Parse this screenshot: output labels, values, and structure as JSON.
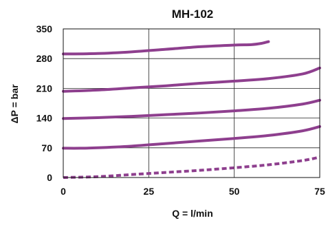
{
  "chart_data": {
    "type": "line",
    "title": "MH-102",
    "xlabel": "Q = l/min",
    "ylabel": "ΔP = bar",
    "xlim": [
      0,
      75
    ],
    "ylim": [
      0,
      350
    ],
    "x_ticks": [
      0,
      25,
      50,
      75
    ],
    "x_tick_labels": [
      "0",
      "25",
      "50",
      "75"
    ],
    "y_ticks": [
      0,
      70,
      140,
      210,
      280,
      350
    ],
    "y_tick_labels": [
      "0",
      "70",
      "140",
      "210",
      "280",
      "350"
    ],
    "grid": true,
    "line_color": "#8e3f8e",
    "series": [
      {
        "style": "solid",
        "x": [
          0,
          10,
          20,
          30,
          40,
          50,
          55,
          58,
          60
        ],
        "y": [
          291,
          292,
          296,
          302,
          308,
          312,
          313,
          316,
          320
        ]
      },
      {
        "style": "solid",
        "x": [
          0,
          10,
          20,
          30,
          40,
          50,
          60,
          70,
          75
        ],
        "y": [
          203,
          206,
          211,
          216,
          222,
          227,
          233,
          244,
          258
        ]
      },
      {
        "style": "solid",
        "x": [
          0,
          10,
          20,
          30,
          40,
          50,
          60,
          70,
          75
        ],
        "y": [
          139,
          141,
          144,
          148,
          152,
          157,
          163,
          173,
          182
        ]
      },
      {
        "style": "solid",
        "x": [
          0,
          5,
          10,
          20,
          30,
          40,
          50,
          60,
          70,
          75
        ],
        "y": [
          69,
          69,
          70,
          74,
          80,
          86,
          92,
          99,
          110,
          120
        ]
      },
      {
        "style": "dashed",
        "x": [
          0,
          10,
          20,
          30,
          40,
          50,
          60,
          70,
          75
        ],
        "y": [
          0,
          2,
          7,
          12,
          17,
          23,
          30,
          40,
          48
        ]
      }
    ]
  }
}
